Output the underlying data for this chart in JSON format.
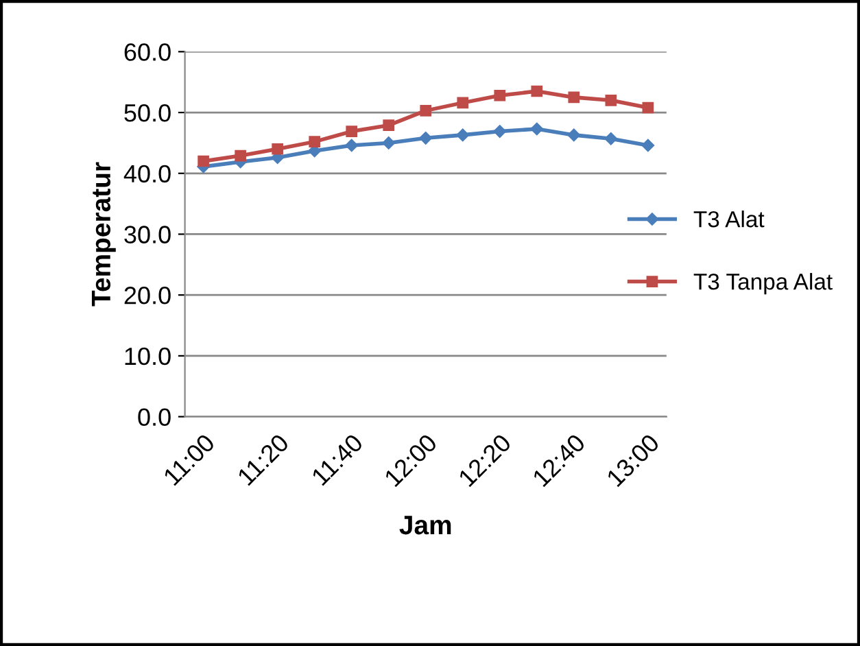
{
  "chart_data": {
    "type": "line",
    "xlabel": "Jam",
    "ylabel": "Temperatur",
    "categories": [
      "11:00",
      null,
      "11:20",
      null,
      "11:40",
      null,
      "12:00",
      null,
      "12:20",
      null,
      "12:40",
      null,
      "13:00"
    ],
    "series": [
      {
        "name": "T3 Alat",
        "color": "#4a7ebb",
        "marker": "diamond",
        "values": [
          41.1,
          41.9,
          42.6,
          43.7,
          44.6,
          45.0,
          45.8,
          46.3,
          46.9,
          47.3,
          46.3,
          45.7,
          44.6
        ]
      },
      {
        "name": "T3 Tanpa Alat",
        "color": "#be4b48",
        "marker": "square",
        "values": [
          42.0,
          42.9,
          44.0,
          45.2,
          46.9,
          47.9,
          50.3,
          51.6,
          52.8,
          53.5,
          52.5,
          52.0,
          50.8
        ]
      }
    ],
    "ylim": [
      0,
      60
    ],
    "yticks": [
      {
        "value": 0,
        "label": "0.0"
      },
      {
        "value": 10,
        "label": "10.0"
      },
      {
        "value": 20,
        "label": "20.0"
      },
      {
        "value": 30,
        "label": "30.0"
      },
      {
        "value": 40,
        "label": "40.0"
      },
      {
        "value": 50,
        "label": "50.0"
      },
      {
        "value": 60,
        "label": "60.0"
      }
    ],
    "grid": "y",
    "legend": "right",
    "line_style": "solid"
  }
}
